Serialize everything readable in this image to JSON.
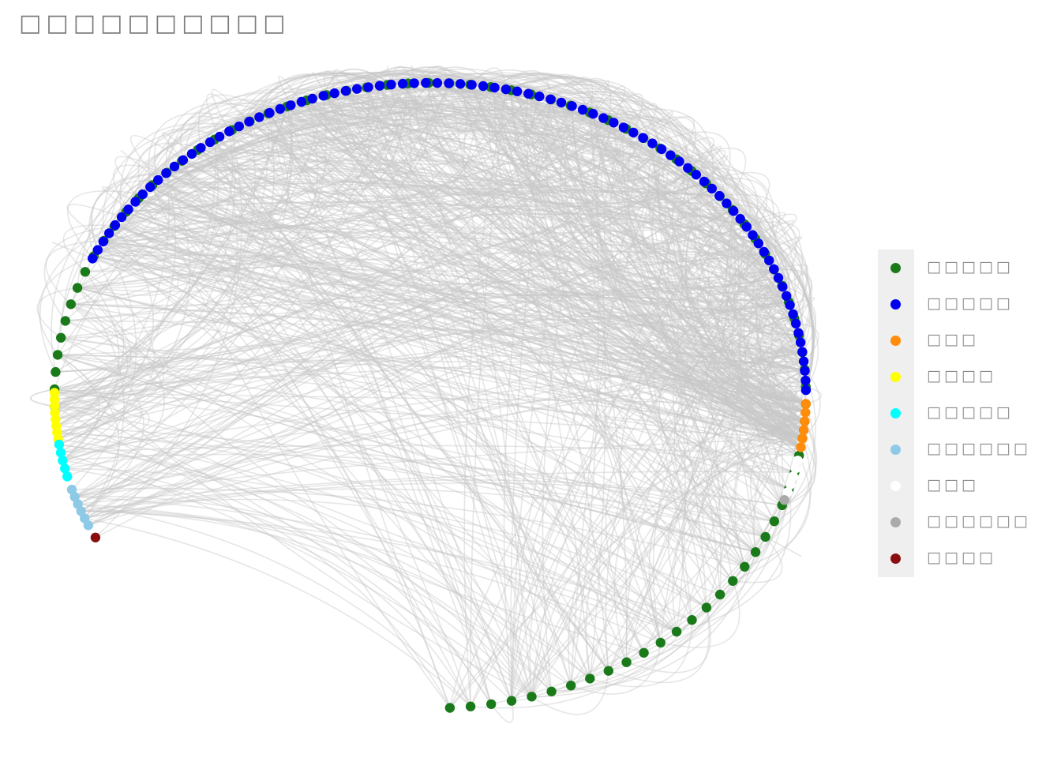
{
  "title": "□□□□□□□□□□",
  "legend": [
    {
      "label": "□□□□□",
      "color": "#1a7a1a",
      "count": 86
    },
    {
      "label": "□□□□□",
      "color": "#0000ee",
      "count": 88
    },
    {
      "label": "□□□",
      "color": "#ff8c0a",
      "count": 6
    },
    {
      "label": "□□□□",
      "color": "#ffff00",
      "count": 8
    },
    {
      "label": "□□□□□",
      "color": "#00ffff",
      "count": 5
    },
    {
      "label": "□□□□□□",
      "color": "#8ecae6",
      "count": 6
    },
    {
      "label": "□□□",
      "color": "#ffffff",
      "count": 5
    },
    {
      "label": "□□□□□□",
      "color": "#aaaaaa",
      "count": 1
    },
    {
      "label": "□□□□",
      "color": "#8b0e0e",
      "count": 1
    }
  ],
  "edge_color": "#c8c8c8"
}
